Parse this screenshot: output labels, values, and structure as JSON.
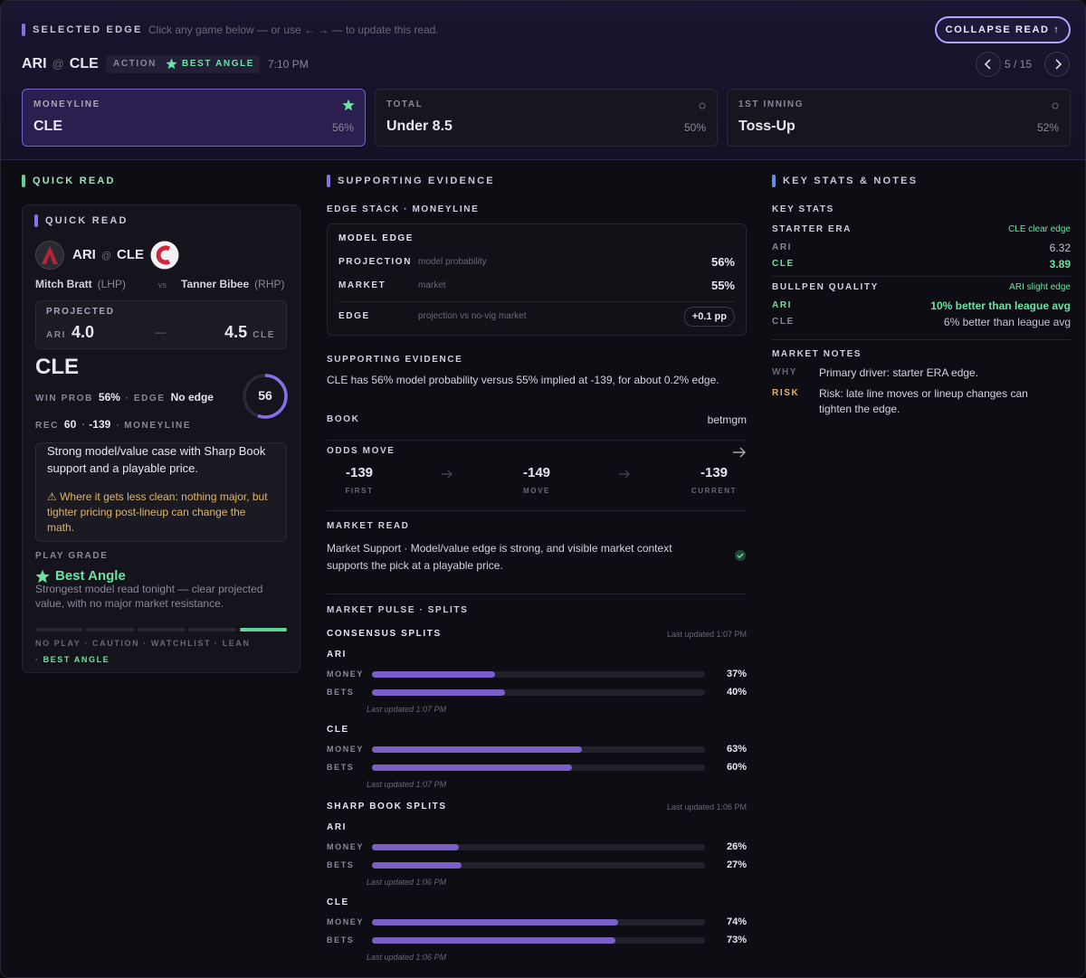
{
  "header": {
    "label": "SELECTED EDGE",
    "hint": "Click any game below — or use ← → — to update this read.",
    "button": "COLLAPSE READ ↑",
    "away": "ARI",
    "at": "@",
    "home": "CLE",
    "tag": "ACTION",
    "grade": "BEST ANGLE",
    "time": "7:10 PM",
    "pager": "5 / 15"
  },
  "markets": [
    {
      "title": "MONEYLINE",
      "pick": "CLE",
      "pct": "56%"
    },
    {
      "title": "TOTAL",
      "pick": "Under 8.5",
      "pct": "50%"
    },
    {
      "title": "1ST INNING",
      "pick": "Toss-Up",
      "pct": "52%"
    }
  ],
  "quick_read": {
    "section": "QUICK READ",
    "card_title": "QUICK READ",
    "away": "ARI",
    "at": "@",
    "home": "CLE",
    "away_pitcher": "Mitch Bratt",
    "away_hand": "(LHP)",
    "vs": "vs",
    "home_pitcher": "Tanner Bibee",
    "home_hand": "(RHP)",
    "projected": {
      "label": "PROJECTED",
      "away": "ARI",
      "away_score": "4.0",
      "dash": "—",
      "home_score": "4.5",
      "home": "CLE"
    },
    "pick": "CLE",
    "win_prob_label": "WIN PROB",
    "win_prob": "56%",
    "edge_label": "EDGE",
    "edge": "No edge",
    "rec_label": "REC",
    "rec": "60",
    "price": "-139",
    "market": "MONEYLINE",
    "ring": 56,
    "summary": "Strong model/value case with Sharp Book support and a playable price.",
    "warning": "⚠ Where it gets less clean: nothing major, but tighter pricing post-lineup can change the math.",
    "grade_label": "PLAY GRADE",
    "grade": "Best Angle",
    "grade_text": "Strongest model read tonight — clear projected value, with no major market resistance.",
    "grade_scale": [
      "NO PLAY",
      "CAUTION",
      "WATCHLIST",
      "LEAN",
      "BEST ANGLE"
    ]
  },
  "evidence": {
    "section": "SUPPORTING EVIDENCE",
    "stack_title": "EDGE STACK · MONEYLINE",
    "model_title": "MODEL EDGE",
    "model_rows": [
      {
        "label": "PROJECTION",
        "desc": "model probability",
        "value": "56%"
      },
      {
        "label": "MARKET",
        "desc": "market",
        "value": "55%"
      },
      {
        "label": "EDGE",
        "desc": "projection vs no-vig market",
        "value": "+0.1 pp"
      }
    ],
    "support_title": "SUPPORTING EVIDENCE",
    "support_text": "CLE has 56% model probability versus 55% implied at -139, for about 0.2% edge.",
    "book_label": "BOOK",
    "book": "betmgm",
    "odds_title": "ODDS MOVE",
    "odds": [
      {
        "value": "-139",
        "label": "FIRST"
      },
      {
        "value": "-149",
        "label": "MOVE"
      },
      {
        "value": "-139",
        "label": "CURRENT"
      }
    ],
    "market_read_title": "MARKET READ",
    "market_read": "Market Support · Model/value edge is strong, and visible market context supports the pick at a playable price.",
    "pulse_title": "MARKET PULSE · SPLITS",
    "splits": [
      {
        "title": "CONSENSUS SPLITS",
        "updated": "Last updated 1:07 PM",
        "teams": [
          {
            "team": "ARI",
            "rows": [
              {
                "label": "MONEY",
                "value": 37,
                "value_label": "37%"
              },
              {
                "label": "BETS",
                "value": 40,
                "value_label": "40%"
              }
            ],
            "updated": "Last updated 1:07 PM"
          },
          {
            "team": "CLE",
            "rows": [
              {
                "label": "MONEY",
                "value": 63,
                "value_label": "63%"
              },
              {
                "label": "BETS",
                "value": 60,
                "value_label": "60%"
              }
            ],
            "updated": "Last updated 1:07 PM"
          }
        ]
      },
      {
        "title": "SHARP BOOK SPLITS",
        "updated": "Last updated 1:06 PM",
        "teams": [
          {
            "team": "ARI",
            "rows": [
              {
                "label": "MONEY",
                "value": 26,
                "value_label": "26%"
              },
              {
                "label": "BETS",
                "value": 27,
                "value_label": "27%"
              }
            ],
            "updated": "Last updated 1:06 PM"
          },
          {
            "team": "CLE",
            "rows": [
              {
                "label": "MONEY",
                "value": 74,
                "value_label": "74%"
              },
              {
                "label": "BETS",
                "value": 73,
                "value_label": "73%"
              }
            ],
            "updated": "Last updated 1:06 PM"
          }
        ]
      }
    ]
  },
  "key_stats": {
    "section": "KEY STATS & NOTES",
    "title": "KEY STATS",
    "groups": [
      {
        "label": "STARTER ERA",
        "note": "CLE clear edge",
        "rows": [
          {
            "team": "ARI",
            "value": "6.32"
          },
          {
            "team": "CLE",
            "value": "3.89"
          }
        ]
      },
      {
        "label": "BULLPEN QUALITY",
        "note": "ARI slight edge",
        "rows": [
          {
            "team": "ARI",
            "value": "10% better than league avg"
          },
          {
            "team": "CLE",
            "value": "6% better than league avg"
          }
        ]
      }
    ],
    "notes_title": "MARKET NOTES",
    "notes": [
      {
        "tag": "WHY",
        "text": "Primary driver: starter ERA edge."
      },
      {
        "tag": "RISK",
        "text": "Risk: late line moves or lineup changes can tighten the edge."
      }
    ]
  }
}
